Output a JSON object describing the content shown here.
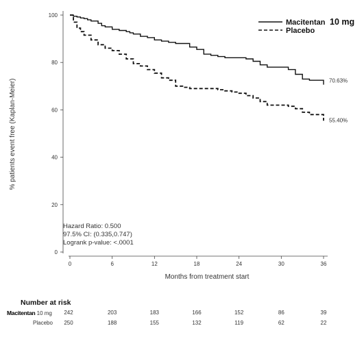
{
  "chart_data": {
    "type": "line",
    "title": "",
    "xlabel": "Months from treatment start",
    "ylabel": "% patients event free (Kaplan-Meier)",
    "xlim": [
      0,
      36
    ],
    "ylim": [
      0,
      100
    ],
    "x_ticks": [
      0,
      6,
      12,
      18,
      24,
      30,
      36
    ],
    "y_ticks": [
      0,
      20,
      40,
      60,
      80,
      100
    ],
    "grid": false,
    "legend_position": "top-right",
    "series": [
      {
        "name": "Macitentan 10 mg",
        "legend_name": "Macitentan",
        "legend_suffix": "10 mg",
        "line_style": "solid",
        "color": "#111111",
        "end_label": "70.63%",
        "x": [
          0,
          0.5,
          1,
          1.5,
          2,
          2.5,
          3,
          4,
          4.5,
          5,
          6,
          7,
          8,
          8.5,
          9,
          10,
          11,
          12,
          13,
          14,
          15,
          16,
          17,
          18,
          19,
          20,
          21,
          22,
          23,
          24,
          25,
          26,
          27,
          28,
          29,
          30,
          31,
          32,
          33,
          34,
          35,
          36
        ],
        "values": [
          100,
          99.5,
          99.2,
          98.8,
          98.5,
          98,
          97.5,
          96.5,
          95.5,
          95,
          94,
          93.5,
          93,
          92.5,
          92,
          91,
          90.5,
          89.5,
          89,
          88.5,
          88,
          88,
          86.5,
          85.5,
          83.5,
          83,
          82.5,
          82,
          82,
          82,
          81.5,
          80.5,
          79,
          78,
          78,
          78,
          77,
          75,
          73,
          72.5,
          72.5,
          70.63
        ]
      },
      {
        "name": "Placebo",
        "legend_name": "Placebo",
        "line_style": "dashed",
        "color": "#111111",
        "end_label": "55.40%",
        "x": [
          0,
          0.5,
          1,
          1.5,
          2,
          3,
          4,
          5,
          6,
          7,
          8,
          9,
          10,
          11,
          12,
          13,
          14,
          15,
          16,
          17,
          18,
          19,
          20,
          21,
          22,
          23,
          24,
          25,
          26,
          27,
          28,
          29,
          30,
          31,
          32,
          33,
          34,
          35,
          36
        ],
        "values": [
          100,
          97,
          94.5,
          93,
          91.5,
          89.5,
          87.5,
          86,
          85,
          83.5,
          81.5,
          79.5,
          78.5,
          77,
          75.5,
          73.5,
          72.5,
          70,
          69.5,
          69,
          69,
          69,
          69,
          68.5,
          68,
          67.5,
          67,
          66,
          65,
          63.5,
          62,
          62,
          62,
          61.5,
          60.5,
          59,
          58,
          58,
          55.4
        ]
      }
    ],
    "annotations": [
      "Hazard Ratio: 0.500",
      "97.5% CI: (0.335,0.747)",
      "Logrank p-value: <.0001"
    ],
    "risk_table": {
      "title": "Number at risk",
      "rows": [
        {
          "label_bold": "Macitentan",
          "label_rest": "10 mg",
          "values": [
            "242",
            "203",
            "183",
            "166",
            "152",
            "86",
            "39"
          ]
        },
        {
          "label_bold": "",
          "label_rest": "Placebo",
          "values": [
            "250",
            "188",
            "155",
            "132",
            "119",
            "62",
            "22"
          ]
        }
      ]
    }
  }
}
